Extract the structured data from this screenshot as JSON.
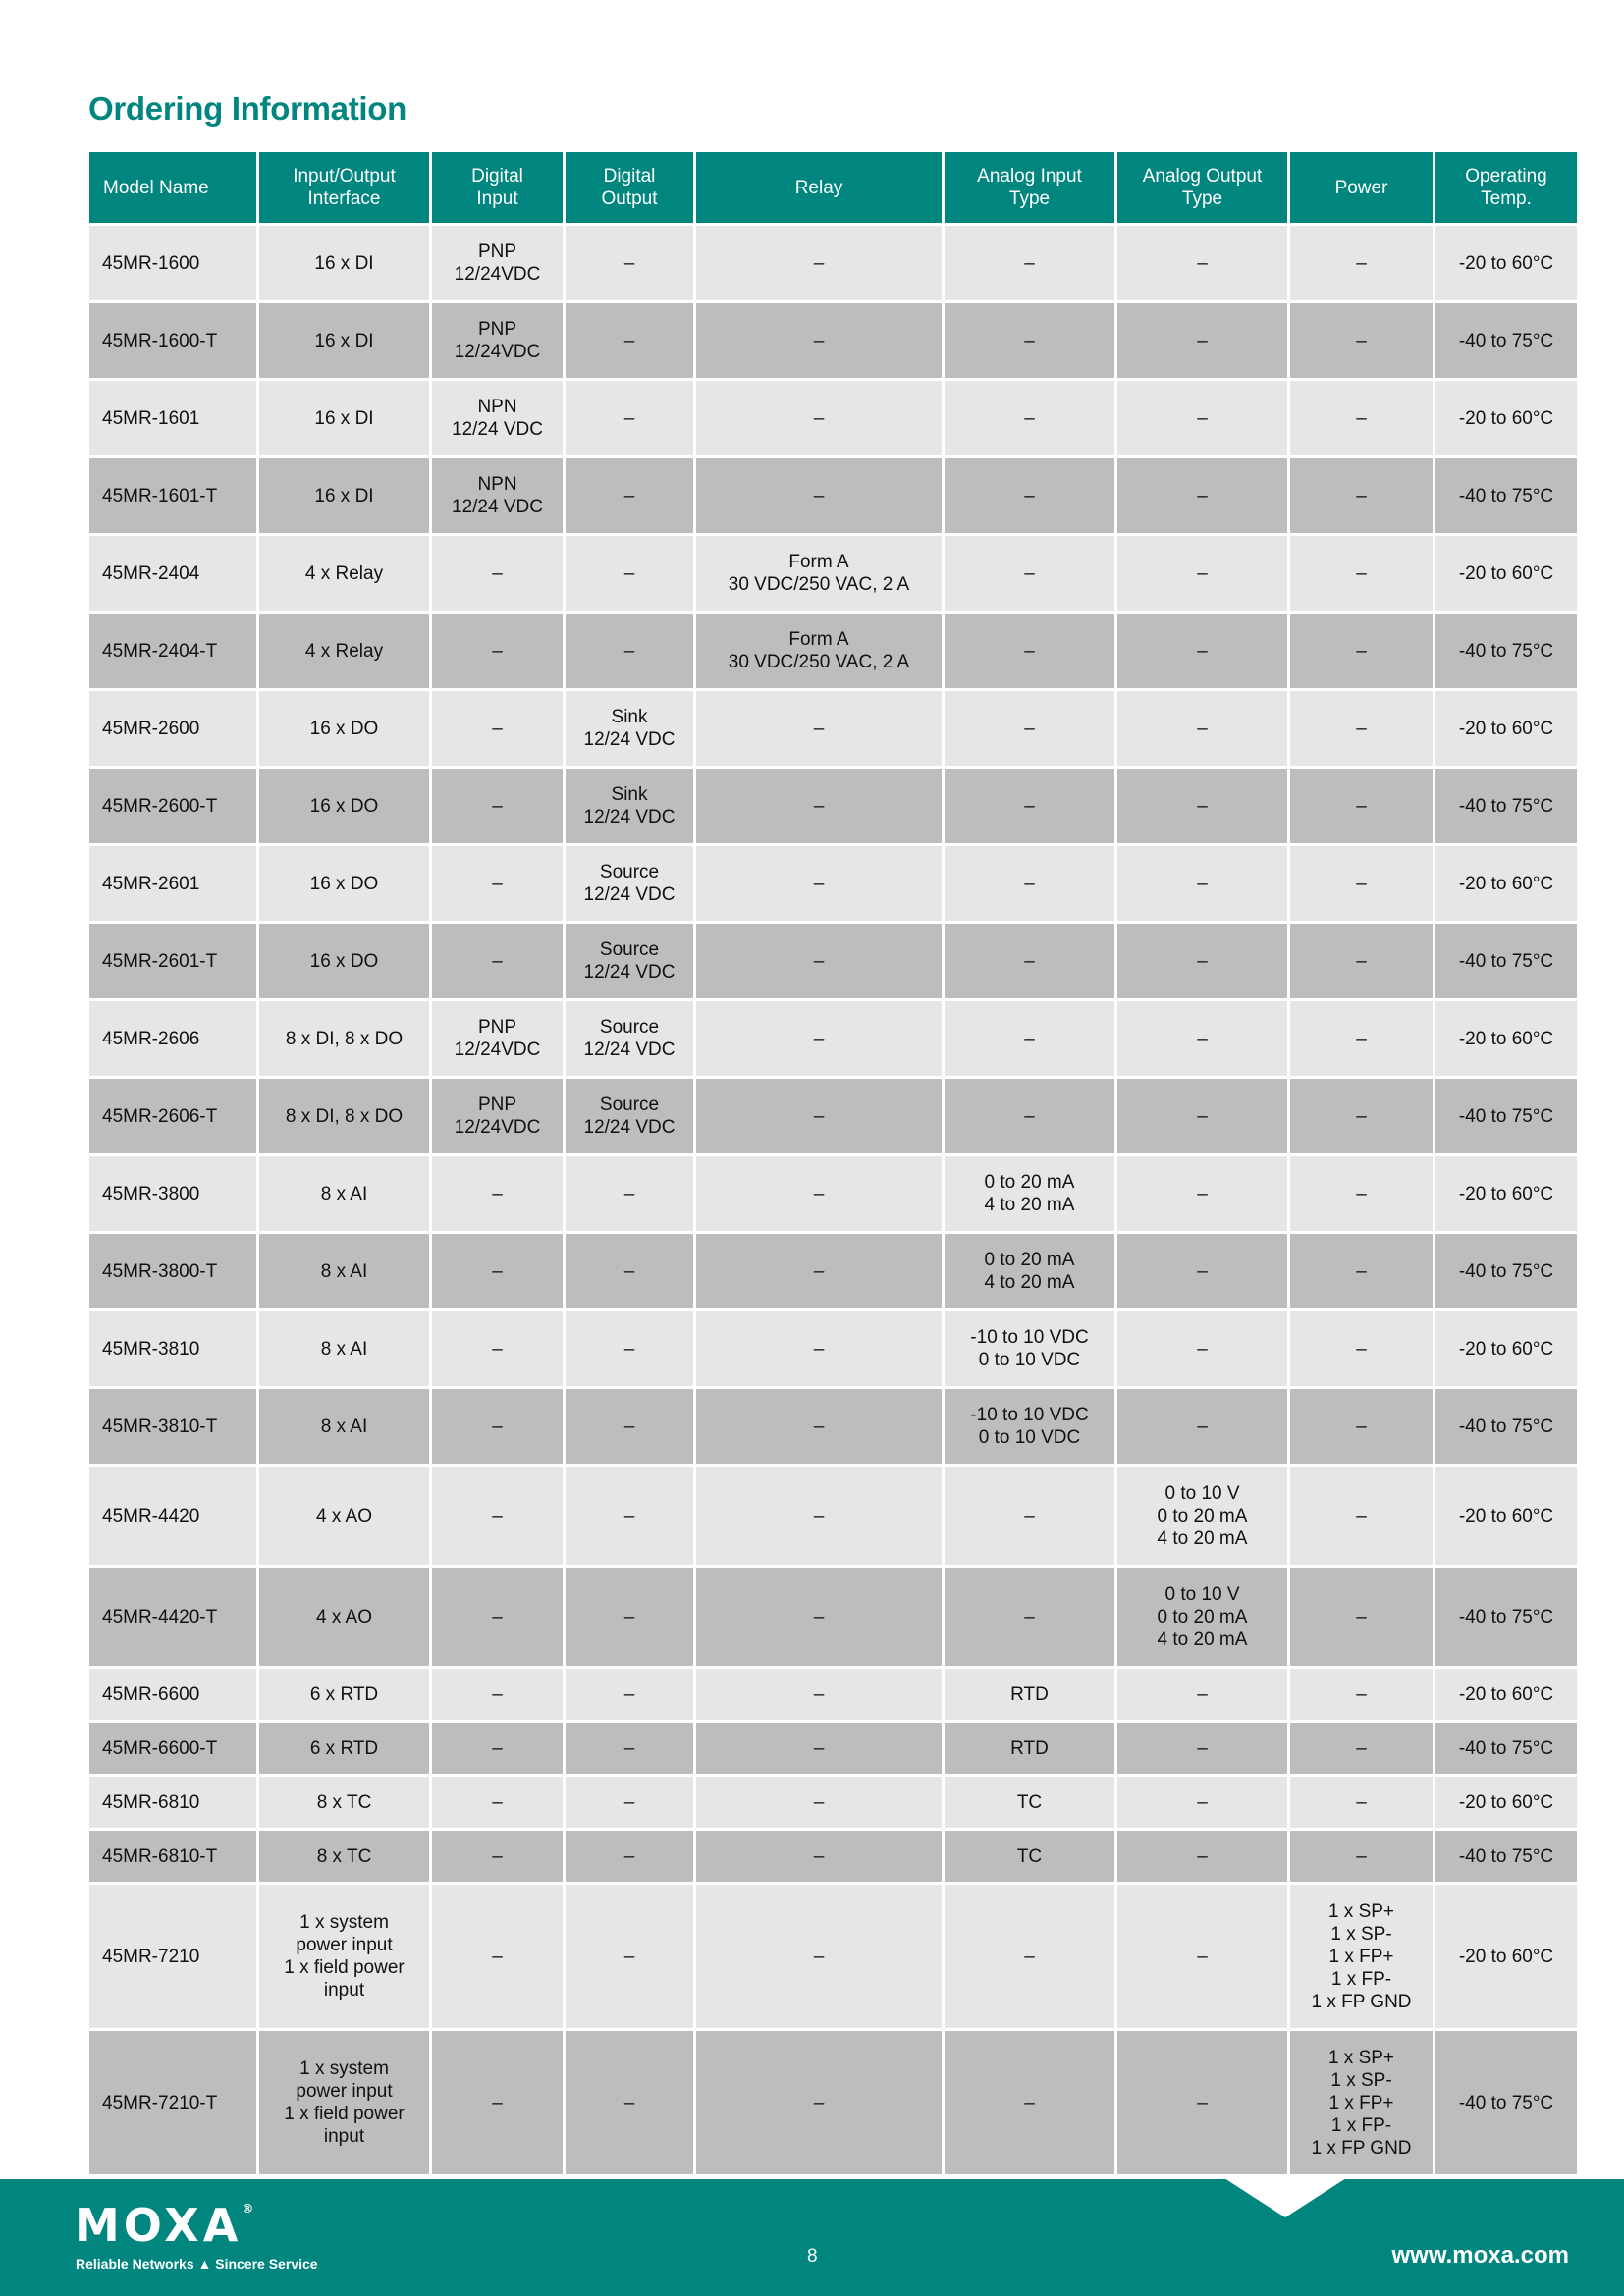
{
  "title": "Ordering Information",
  "colors": {
    "accent": "#00857f",
    "row_light": "#e6e6e6",
    "row_dark": "#bdbdbd"
  },
  "table": {
    "headers": [
      "Model Name",
      "Input/Output\nInterface",
      "Digital\nInput",
      "Digital\nOutput",
      "Relay",
      "Analog Input\nType",
      "Analog Output\nType",
      "Power",
      "Operating\nTemp."
    ],
    "rows": [
      [
        "45MR-1600",
        "16 x DI",
        "PNP\n12/24VDC",
        "–",
        "–",
        "–",
        "–",
        "–",
        "-20 to 60°C"
      ],
      [
        "45MR-1600-T",
        "16 x DI",
        "PNP\n12/24VDC",
        "–",
        "–",
        "–",
        "–",
        "–",
        "-40 to 75°C"
      ],
      [
        "45MR-1601",
        "16 x DI",
        "NPN\n12/24 VDC",
        "–",
        "–",
        "–",
        "–",
        "–",
        "-20 to 60°C"
      ],
      [
        "45MR-1601-T",
        "16 x DI",
        "NPN\n12/24 VDC",
        "–",
        "–",
        "–",
        "–",
        "–",
        "-40 to 75°C"
      ],
      [
        "45MR-2404",
        "4 x Relay",
        "–",
        "–",
        "Form A\n30 VDC/250 VAC, 2 A",
        "–",
        "–",
        "–",
        "-20 to 60°C"
      ],
      [
        "45MR-2404-T",
        "4 x Relay",
        "–",
        "–",
        "Form A\n30 VDC/250 VAC, 2 A",
        "–",
        "–",
        "–",
        "-40 to 75°C"
      ],
      [
        "45MR-2600",
        "16 x DO",
        "–",
        "Sink\n12/24 VDC",
        "–",
        "–",
        "–",
        "–",
        "-20 to 60°C"
      ],
      [
        "45MR-2600-T",
        "16 x DO",
        "–",
        "Sink\n12/24 VDC",
        "–",
        "–",
        "–",
        "–",
        "-40 to 75°C"
      ],
      [
        "45MR-2601",
        "16 x DO",
        "–",
        "Source\n12/24 VDC",
        "–",
        "–",
        "–",
        "–",
        "-20 to 60°C"
      ],
      [
        "45MR-2601-T",
        "16 x DO",
        "–",
        "Source\n12/24 VDC",
        "–",
        "–",
        "–",
        "–",
        "-40 to 75°C"
      ],
      [
        "45MR-2606",
        "8 x DI, 8 x DO",
        "PNP\n12/24VDC",
        "Source\n12/24 VDC",
        "–",
        "–",
        "–",
        "–",
        "-20 to 60°C"
      ],
      [
        "45MR-2606-T",
        "8 x DI, 8 x DO",
        "PNP\n12/24VDC",
        "Source\n12/24 VDC",
        "–",
        "–",
        "–",
        "–",
        "-40 to 75°C"
      ],
      [
        "45MR-3800",
        "8 x AI",
        "–",
        "–",
        "–",
        "0 to 20 mA\n4 to 20 mA",
        "–",
        "–",
        "-20 to 60°C"
      ],
      [
        "45MR-3800-T",
        "8 x AI",
        "–",
        "–",
        "–",
        "0 to 20 mA\n4 to 20 mA",
        "–",
        "–",
        "-40 to 75°C"
      ],
      [
        "45MR-3810",
        "8 x AI",
        "–",
        "–",
        "–",
        "-10 to 10 VDC\n0 to 10 VDC",
        "–",
        "–",
        "-20 to 60°C"
      ],
      [
        "45MR-3810-T",
        "8 x AI",
        "–",
        "–",
        "–",
        "-10 to 10 VDC\n0 to 10 VDC",
        "–",
        "–",
        "-40 to 75°C"
      ],
      [
        "45MR-4420",
        "4 x AO",
        "–",
        "–",
        "–",
        "–",
        "0 to 10 V\n0 to 20 mA\n4 to 20 mA",
        "–",
        "-20 to 60°C"
      ],
      [
        "45MR-4420-T",
        "4 x AO",
        "–",
        "–",
        "–",
        "–",
        "0 to 10 V\n0 to 20 mA\n4 to 20 mA",
        "–",
        "-40 to 75°C"
      ],
      [
        "45MR-6600",
        "6 x RTD",
        "–",
        "–",
        "–",
        "RTD",
        "–",
        "–",
        "-20 to 60°C"
      ],
      [
        "45MR-6600-T",
        "6 x RTD",
        "–",
        "–",
        "–",
        "RTD",
        "–",
        "–",
        "-40 to 75°C"
      ],
      [
        "45MR-6810",
        "8 x TC",
        "–",
        "–",
        "–",
        "TC",
        "–",
        "–",
        "-20 to 60°C"
      ],
      [
        "45MR-6810-T",
        "8 x TC",
        "–",
        "–",
        "–",
        "TC",
        "–",
        "–",
        "-40 to 75°C"
      ],
      [
        "45MR-7210",
        "1 x system\npower input\n1 x field power\ninput",
        "–",
        "–",
        "–",
        "–",
        "–",
        "1 x SP+\n1 x SP-\n1 x FP+\n1 x FP-\n1 x FP GND",
        "-20 to 60°C"
      ],
      [
        "45MR-7210-T",
        "1 x system\npower input\n1 x field power\ninput",
        "–",
        "–",
        "–",
        "–",
        "–",
        "1 x SP+\n1 x SP-\n1 x FP+\n1 x FP-\n1 x FP GND",
        "-40 to 75°C"
      ]
    ]
  },
  "footer": {
    "logo": "MOXA",
    "tagline": "Reliable Networks ▲ Sincere Service",
    "page_number": "8",
    "url": "www.moxa.com"
  }
}
